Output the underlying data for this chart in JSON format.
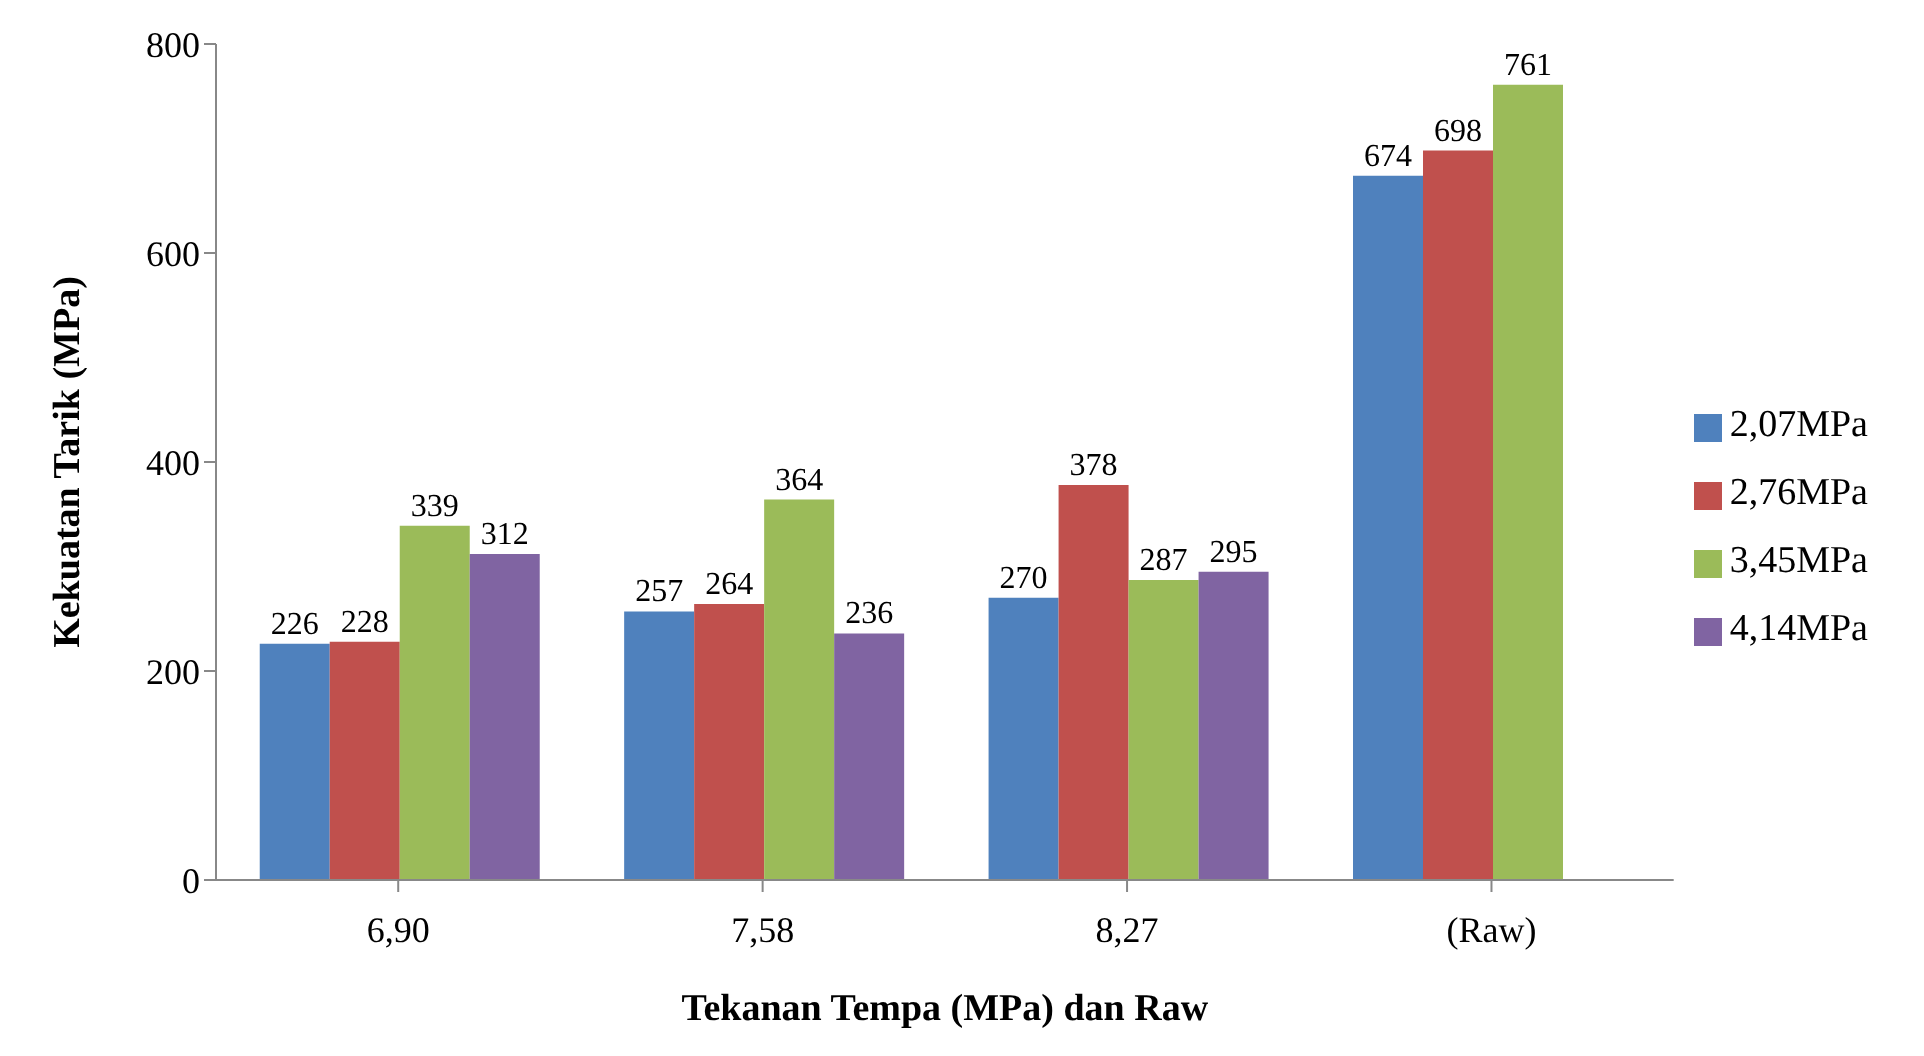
{
  "chart_data": {
    "type": "bar",
    "xlabel": "Tekanan Tempa (MPa) dan Raw",
    "ylabel": "Kekuatan Tarik (MPa)",
    "categories": [
      "6,90",
      "7,58",
      "8,27",
      "(Raw)"
    ],
    "series": [
      {
        "name": "2,07MPa",
        "color": "#4f81bd",
        "values": [
          226,
          257,
          270,
          674
        ]
      },
      {
        "name": "2,76MPa",
        "color": "#c0504d",
        "values": [
          228,
          264,
          378,
          698
        ]
      },
      {
        "name": "3,45MPa",
        "color": "#9bbb59",
        "values": [
          339,
          364,
          287,
          761
        ]
      },
      {
        "name": "4,14MPa",
        "color": "#8064a2",
        "values": [
          312,
          236,
          295,
          null
        ]
      }
    ],
    "ylim": [
      0,
      800
    ],
    "yticks": [
      0,
      200,
      400,
      600,
      800
    ],
    "data_labels": true,
    "legend": "right",
    "grid": false
  }
}
